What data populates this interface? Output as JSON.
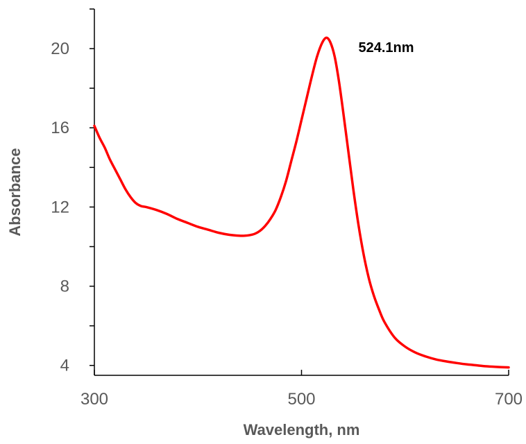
{
  "chart_data": {
    "type": "line",
    "title": "",
    "xlabel": "Wavelength, nm",
    "ylabel": "Absorbance",
    "xlim": [
      300,
      700
    ],
    "ylim": [
      3.5,
      22
    ],
    "x_ticks": [
      300,
      500,
      700
    ],
    "y_ticks": [
      4,
      8,
      12,
      16,
      20
    ],
    "y_ticks_unlabeled": [
      6,
      10,
      14,
      18,
      22
    ],
    "x_tick_labels": [
      "300",
      "500",
      "700"
    ],
    "y_tick_labels": [
      "4",
      "8",
      "12",
      "16",
      "20"
    ],
    "grid": false,
    "legend": "none",
    "line_color": "#ff0000",
    "annotations": [
      {
        "text": "524.1nm",
        "x": 524.1,
        "y": 20.6
      }
    ],
    "series": [
      {
        "x": [
          300,
          305,
          310,
          315,
          320,
          325,
          330,
          335,
          340,
          345,
          350,
          360,
          370,
          380,
          390,
          400,
          410,
          420,
          430,
          440,
          445,
          450,
          455,
          460,
          465,
          470,
          475,
          480,
          485,
          490,
          495,
          500,
          505,
          510,
          515,
          520,
          524.1,
          528,
          532,
          536,
          540,
          545,
          550,
          555,
          560,
          565,
          570,
          575,
          580,
          590,
          600,
          610,
          620,
          630,
          640,
          650,
          660,
          670,
          680,
          690,
          700
        ],
        "y": [
          16.1,
          15.5,
          15.0,
          14.4,
          13.9,
          13.4,
          12.9,
          12.5,
          12.2,
          12.05,
          12.0,
          11.85,
          11.65,
          11.4,
          11.2,
          11.0,
          10.85,
          10.7,
          10.6,
          10.55,
          10.55,
          10.58,
          10.65,
          10.8,
          11.05,
          11.4,
          11.85,
          12.5,
          13.3,
          14.3,
          15.3,
          16.4,
          17.5,
          18.6,
          19.6,
          20.3,
          20.55,
          20.3,
          19.6,
          18.4,
          16.9,
          14.9,
          12.9,
          11.1,
          9.6,
          8.4,
          7.5,
          6.8,
          6.2,
          5.4,
          4.95,
          4.65,
          4.45,
          4.3,
          4.2,
          4.12,
          4.05,
          4.0,
          3.95,
          3.92,
          3.9
        ]
      }
    ]
  }
}
